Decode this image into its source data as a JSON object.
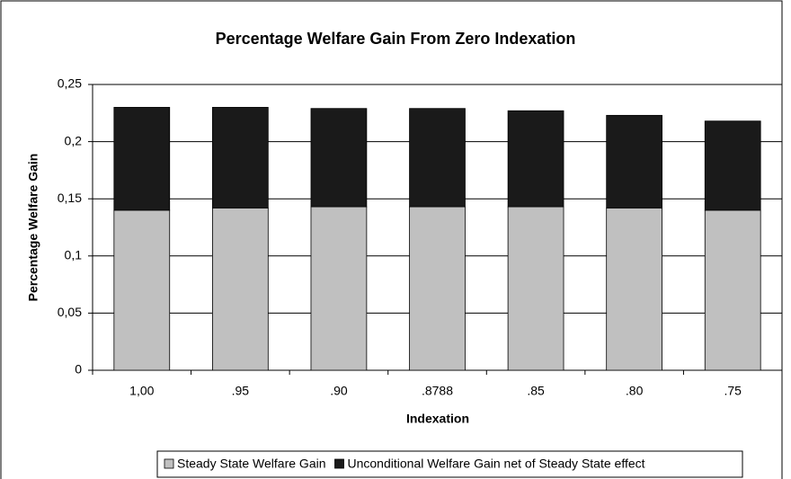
{
  "chart_data": {
    "type": "stacked_bar",
    "title": "Percentage Welfare Gain From Zero Indexation",
    "x_label": "Indexation",
    "y_label": "Percentage Welfare Gain",
    "categories": [
      "1,00",
      ".95",
      ".90",
      ".8788",
      ".85",
      ".80",
      ".75"
    ],
    "series": [
      {
        "name": "Steady State Welfare Gain",
        "color": "#c0c0c0",
        "values": [
          0.14,
          0.142,
          0.143,
          0.143,
          0.143,
          0.142,
          0.14
        ]
      },
      {
        "name": "Unconditional Welfare Gain net of Steady State effect",
        "color": "#1a1a1a",
        "values": [
          0.09,
          0.088,
          0.086,
          0.086,
          0.084,
          0.081,
          0.078
        ]
      }
    ],
    "ylim": [
      0,
      0.25
    ],
    "yticks": [
      0,
      {
        "value": 0.05,
        "label": "0,05"
      },
      {
        "value": 0.1,
        "label": "0,1"
      },
      {
        "value": 0.15,
        "label": "0,15"
      },
      {
        "value": 0.2,
        "label": "0,2"
      },
      {
        "value": 0.25,
        "label": "0,25"
      }
    ],
    "grid": true,
    "legend": "bottom"
  }
}
